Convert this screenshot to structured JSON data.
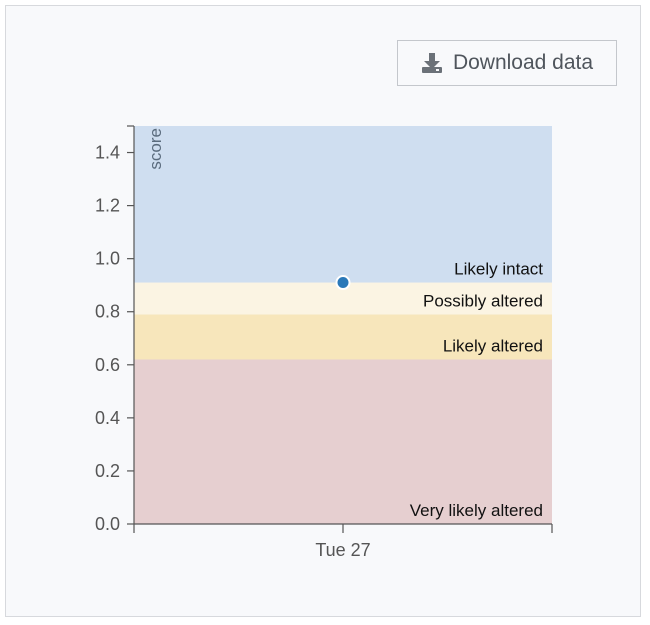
{
  "toolbar": {
    "download_label": "Download data",
    "download_icon": "download-icon"
  },
  "chart_data": {
    "type": "scatter",
    "ylabel": "score",
    "xlabel": "",
    "ylim": [
      0,
      1.5
    ],
    "yticks": [
      0.0,
      0.2,
      0.4,
      0.6,
      0.8,
      1.0,
      1.2,
      1.4
    ],
    "yticklabels": [
      "0.0",
      "0.2",
      "0.4",
      "0.6",
      "0.8",
      "1.0",
      "1.2",
      "1.4"
    ],
    "x_categories": [
      "Tue 27"
    ],
    "points": [
      {
        "x": "Tue 27",
        "y": 0.91,
        "color": "#2a78b8"
      }
    ],
    "bands": [
      {
        "label": "Very likely altered",
        "from": 0.0,
        "to": 0.62,
        "color": "#e6cfd0"
      },
      {
        "label": "Likely altered",
        "from": 0.62,
        "to": 0.79,
        "color": "#f7e6bb"
      },
      {
        "label": "Possibly altered",
        "from": 0.79,
        "to": 0.91,
        "color": "#fbf4e3"
      },
      {
        "label": "Likely intact",
        "from": 0.91,
        "to": 1.5,
        "color": "#cfdef0"
      }
    ],
    "grid": false,
    "legend": "none"
  }
}
